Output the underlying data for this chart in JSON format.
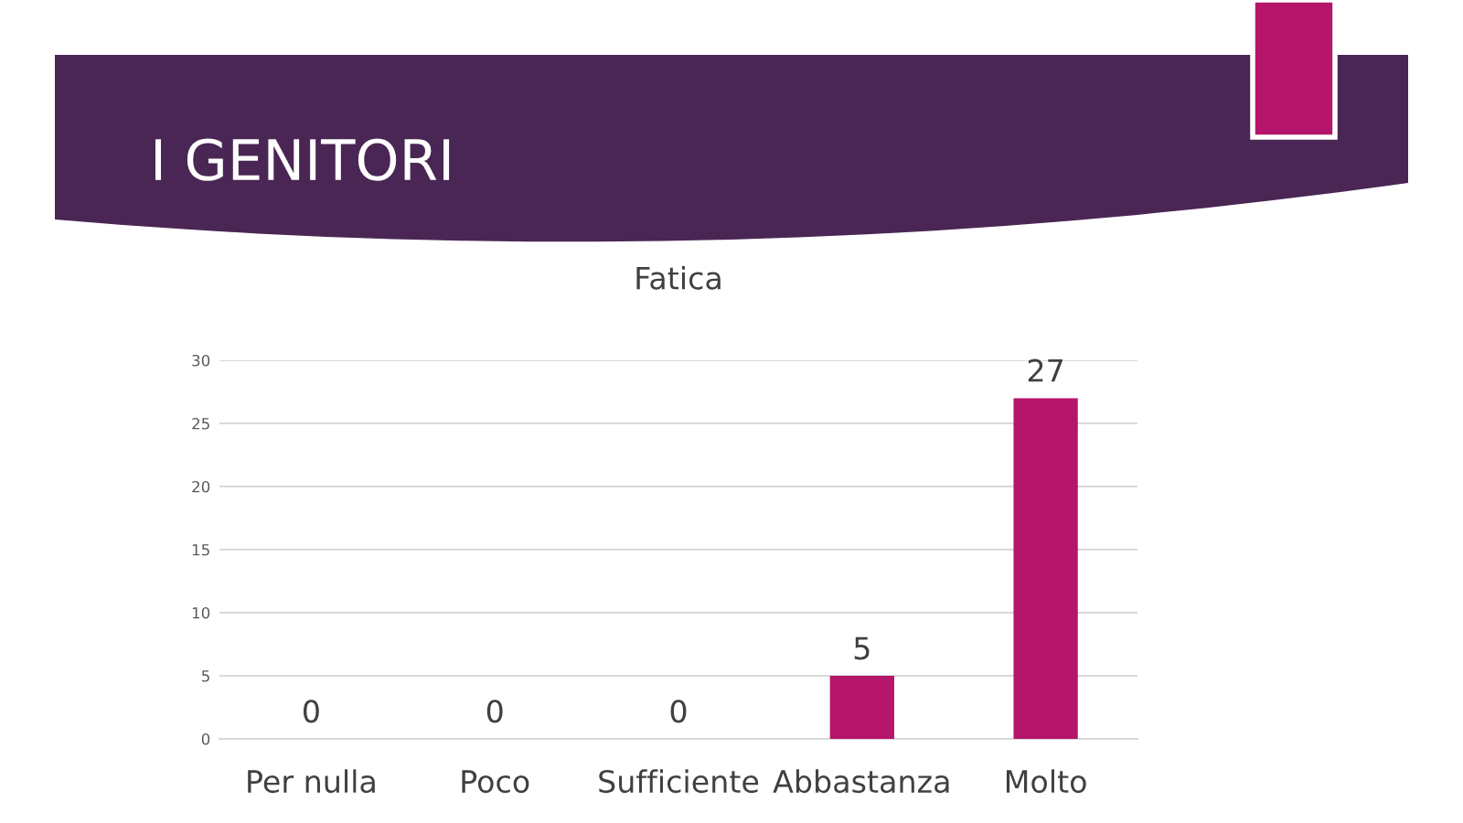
{
  "chart_data": {
    "type": "bar",
    "title": "I GENITORI",
    "subtitle": "Fatica",
    "categories": [
      "Per nulla",
      "Poco",
      "Sufficiente",
      "Abbastanza",
      "Molto"
    ],
    "values": [
      0,
      0,
      0,
      5,
      27
    ],
    "color": "#b5156a",
    "ylim": [
      0,
      30
    ],
    "yticks": [
      0,
      5,
      10,
      15,
      20,
      25,
      30
    ],
    "grid": "y",
    "data_labels": true
  }
}
